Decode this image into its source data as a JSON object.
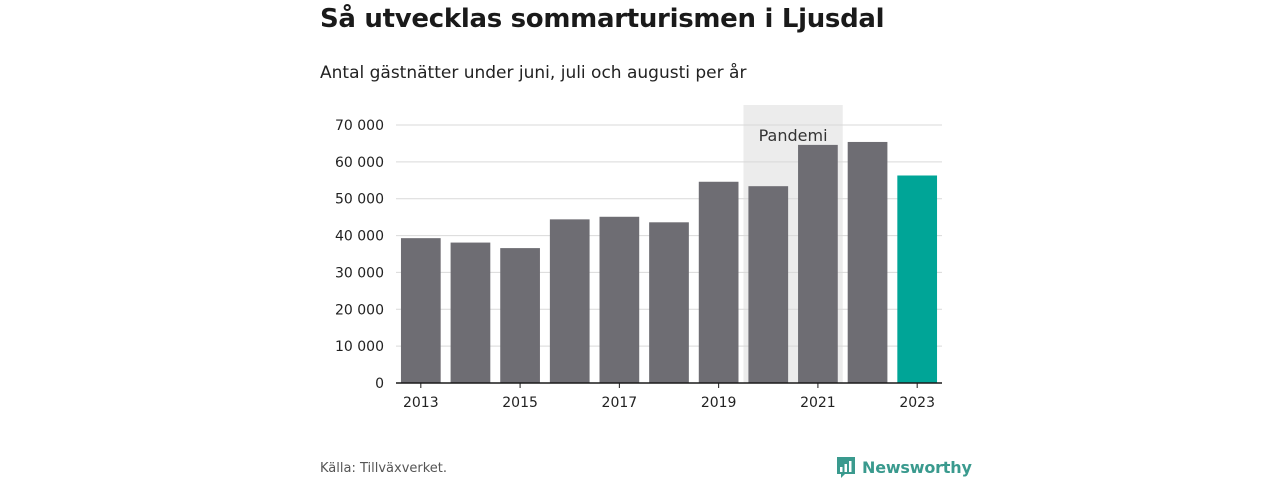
{
  "title": "Så utvecklas sommarturismen i Ljusdal",
  "subtitle": "Antal gästnätter under juni, juli och augusti per år",
  "source": "Källa: Tillväxverket.",
  "brand": {
    "name": "Newsworthy",
    "color": "#3a9a8e",
    "icon": "bar-chart-speech-bubble-icon"
  },
  "chart_data": {
    "type": "bar",
    "categories": [
      "2013",
      "2014",
      "2015",
      "2016",
      "2017",
      "2018",
      "2019",
      "2020",
      "2021",
      "2022",
      "2023"
    ],
    "values": [
      39300,
      38100,
      36600,
      44400,
      45100,
      43600,
      54600,
      53400,
      64600,
      65400,
      56300
    ],
    "highlight_category": "2023",
    "colors": {
      "default": "#6e6d73",
      "highlight": "#00a597",
      "grid": "#d9d9d9",
      "axis": "#1a1a1a",
      "band": "#ececec"
    },
    "ylim": [
      0,
      70000
    ],
    "yticks": [
      0,
      10000,
      20000,
      30000,
      40000,
      50000,
      60000,
      70000
    ],
    "ytick_labels": [
      "0",
      "10 000",
      "20 000",
      "30 000",
      "40 000",
      "50 000",
      "60 000",
      "70 000"
    ],
    "xtick_labels": [
      "2013",
      "2015",
      "2017",
      "2019",
      "2021",
      "2023"
    ],
    "grid": true,
    "legend": "none",
    "annotation": {
      "label": "Pandemi",
      "span": [
        "2020",
        "2021"
      ]
    }
  }
}
